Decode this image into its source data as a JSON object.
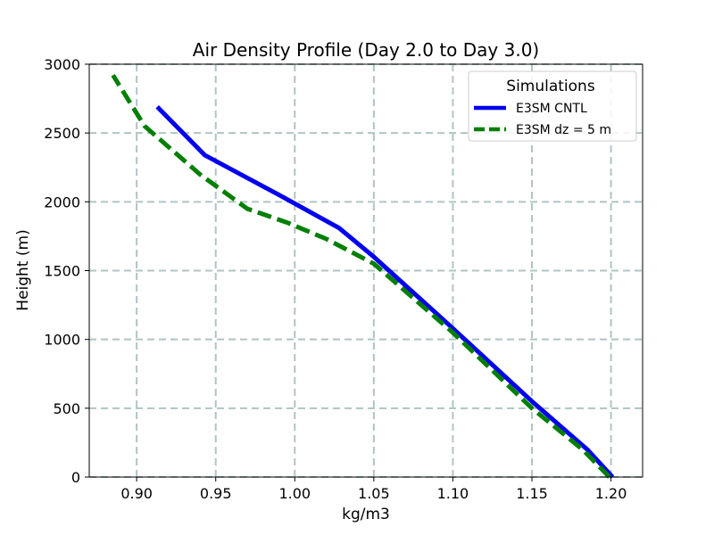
{
  "chart_data": {
    "type": "line",
    "title": "Air Density Profile (Day 2.0 to Day 3.0)",
    "xlabel": "kg/m3",
    "ylabel": "Height (m)",
    "xlim": [
      0.87,
      1.22
    ],
    "ylim": [
      0,
      3000
    ],
    "xticks": [
      0.9,
      0.95,
      1.0,
      1.05,
      1.1,
      1.15,
      1.2
    ],
    "xtick_labels": [
      "0.90",
      "0.95",
      "1.00",
      "1.05",
      "1.10",
      "1.15",
      "1.20"
    ],
    "yticks": [
      0,
      500,
      1000,
      1500,
      2000,
      2500,
      3000
    ],
    "ytick_labels": [
      "0",
      "500",
      "1000",
      "1500",
      "2000",
      "2500",
      "3000"
    ],
    "grid": true,
    "legend": {
      "title": "Simulations",
      "position": "top-right"
    },
    "series": [
      {
        "name": "E3SM CNTL",
        "color": "#0000ee",
        "style": "solid",
        "points": [
          {
            "x": 1.201,
            "y": 0
          },
          {
            "x": 1.185,
            "y": 200
          },
          {
            "x": 1.15,
            "y": 550
          },
          {
            "x": 1.1,
            "y": 1080
          },
          {
            "x": 1.05,
            "y": 1600
          },
          {
            "x": 1.028,
            "y": 1810
          },
          {
            "x": 0.99,
            "y": 2050
          },
          {
            "x": 0.943,
            "y": 2340
          },
          {
            "x": 0.913,
            "y": 2690
          }
        ]
      },
      {
        "name": "E3SM dz = 5 m",
        "color": "#007f00",
        "style": "dashed",
        "points": [
          {
            "x": 1.199,
            "y": 0
          },
          {
            "x": 1.182,
            "y": 200
          },
          {
            "x": 1.15,
            "y": 500
          },
          {
            "x": 1.1,
            "y": 1050
          },
          {
            "x": 1.05,
            "y": 1550
          },
          {
            "x": 1.02,
            "y": 1730
          },
          {
            "x": 0.995,
            "y": 1850
          },
          {
            "x": 0.97,
            "y": 1950
          },
          {
            "x": 0.94,
            "y": 2200
          },
          {
            "x": 0.905,
            "y": 2550
          },
          {
            "x": 0.885,
            "y": 2920
          }
        ]
      }
    ]
  }
}
